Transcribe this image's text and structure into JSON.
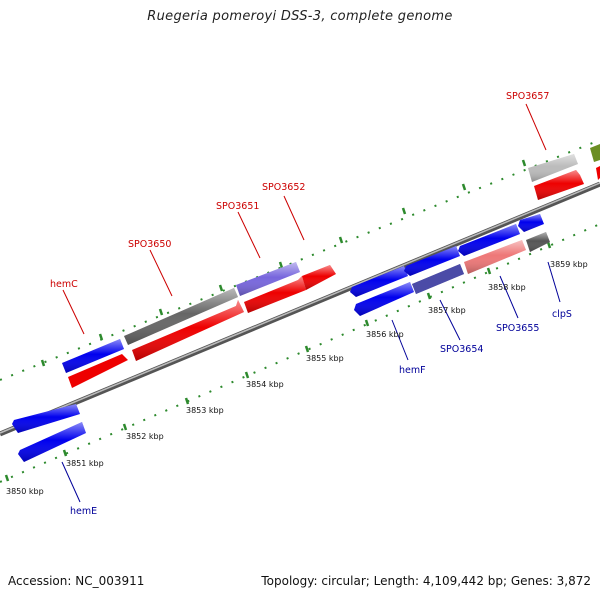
{
  "title": "Ruegeria pomeroyi DSS-3, complete genome",
  "footer": {
    "accession": "Accession: NC_003911",
    "stats": "Topology: circular; Length: 4,109,442 bp; Genes: 3,872"
  },
  "colors": {
    "forward_strand": "#ff0000",
    "reverse_strand": "#0000ee",
    "hypothetical": "#666666",
    "rna": "#8070dd",
    "other": "#aaaaaa",
    "backbone": "#777777",
    "tick": "#228822",
    "upper_label": "#cc0000",
    "lower_label": "#000099"
  },
  "kbp_labels": [
    "3850 kbp",
    "3851 kbp",
    "3852 kbp",
    "3853 kbp",
    "3854 kbp",
    "3855 kbp",
    "3856 kbp",
    "3857 kbp",
    "3858 kbp",
    "3859 kbp"
  ],
  "upper_gene_labels": [
    "hemC",
    "SPO3650",
    "SPO3651",
    "SPO3652",
    "SPO3657"
  ],
  "lower_gene_labels": [
    "hemE",
    "hemF",
    "SPO3654",
    "SPO3655",
    "clpS"
  ]
}
